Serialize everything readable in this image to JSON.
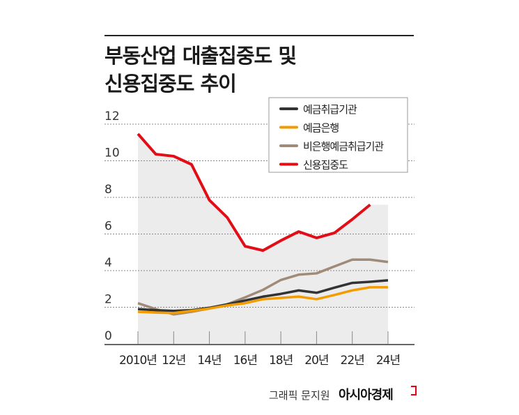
{
  "title_lines": [
    "부동산업 대출집중도 및",
    "신용집중도 추이"
  ],
  "credit": "그래픽 문지원",
  "logo": "아시아경제",
  "chart_data": {
    "type": "line",
    "x": [
      2010,
      2011,
      2012,
      2013,
      2014,
      2015,
      2016,
      2017,
      2018,
      2019,
      2020,
      2021,
      2022,
      2023,
      2024
    ],
    "x_tick_values": [
      2010,
      2012,
      2014,
      2016,
      2018,
      2020,
      2022,
      2024
    ],
    "x_tick_labels": [
      "2010년",
      "12년",
      "14년",
      "16년",
      "18년",
      "20년",
      "22년",
      "24년"
    ],
    "y_ticks": [
      0,
      2,
      4,
      6,
      8,
      10,
      12
    ],
    "ylim": [
      0,
      12
    ],
    "grid": "horizontal dotted",
    "legend_position": "top-right",
    "series": [
      {
        "name": "예금취급기관",
        "color": "#333333",
        "values": [
          1.9,
          1.84,
          1.8,
          1.84,
          1.97,
          2.16,
          2.37,
          2.58,
          2.73,
          2.92,
          2.79,
          3.07,
          3.33,
          3.39,
          3.47
        ]
      },
      {
        "name": "예금은행",
        "color": "#f39c00",
        "values": [
          1.75,
          1.71,
          1.68,
          1.8,
          1.93,
          2.1,
          2.22,
          2.44,
          2.51,
          2.58,
          2.44,
          2.67,
          2.92,
          3.09,
          3.09
        ]
      },
      {
        "name": "비은행예금취급기관",
        "color": "#a08a78",
        "values": [
          2.22,
          1.9,
          1.61,
          1.75,
          1.93,
          2.16,
          2.54,
          2.95,
          3.49,
          3.78,
          3.85,
          4.23,
          4.6,
          4.6,
          4.47
        ]
      },
      {
        "name": "신용집중도",
        "color": "#e10e17",
        "values": [
          11.47,
          10.36,
          10.25,
          9.8,
          7.85,
          6.9,
          5.33,
          5.1,
          5.64,
          6.13,
          5.79,
          6.06,
          6.8,
          7.6,
          null
        ],
        "area_fill": "#ececec"
      }
    ]
  }
}
